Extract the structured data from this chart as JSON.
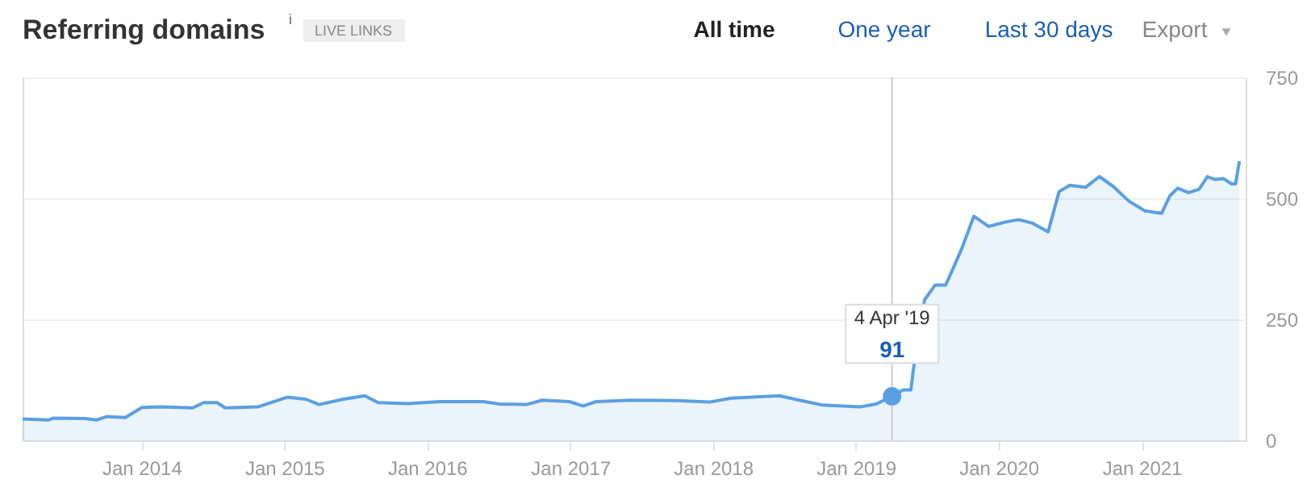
{
  "chart_data": {
    "type": "area",
    "title": "Referring domains",
    "subtitle": "LIVE LINKS",
    "x": [
      "2013-03-03",
      "2013-05-08",
      "2013-05-21",
      "2013-08-11",
      "2013-09-07",
      "2013-10-04",
      "2013-11-21",
      "2014-01-02",
      "2014-02-19",
      "2014-05-12",
      "2014-06-09",
      "2014-07-13",
      "2014-08-03",
      "2014-10-25",
      "2015-01-08",
      "2015-02-25",
      "2015-03-31",
      "2015-06-01",
      "2015-07-26",
      "2015-08-29",
      "2015-11-13",
      "2016-02-04",
      "2016-05-24",
      "2016-07-04",
      "2016-09-11",
      "2016-10-22",
      "2016-12-30",
      "2017-02-03",
      "2017-03-09",
      "2017-06-13",
      "2017-10-01",
      "2017-12-23",
      "2018-02-16",
      "2018-06-20",
      "2018-08-27",
      "2018-10-07",
      "2019-01-12",
      "2019-02-22",
      "2019-04-04",
      "2019-05-02",
      "2019-05-22",
      "2019-05-29",
      "2019-06-26",
      "2019-07-23",
      "2019-08-19",
      "2019-09-09",
      "2019-09-29",
      "2019-10-30",
      "2019-12-07",
      "2020-01-18",
      "2020-02-21",
      "2020-03-27",
      "2020-05-07",
      "2020-06-04",
      "2020-07-01",
      "2020-08-11",
      "2020-09-15",
      "2020-10-20",
      "2020-11-30",
      "2021-01-10",
      "2021-02-21",
      "2021-03-14",
      "2021-04-03",
      "2021-05-01",
      "2021-05-28",
      "2021-06-18",
      "2021-07-08",
      "2021-07-29",
      "2021-08-19",
      "2021-08-29",
      "2021-09-08"
    ],
    "series": [
      {
        "color": "#5a9fe2",
        "values": [
          44,
          42,
          46,
          45,
          42,
          49,
          47,
          68,
          69,
          67,
          78,
          78,
          67,
          69,
          89,
          85,
          74,
          85,
          92,
          78,
          76,
          80,
          80,
          75,
          74,
          83,
          80,
          71,
          80,
          83,
          82,
          79,
          87,
          92,
          80,
          73,
          69,
          75,
          91,
          104,
          104,
          150,
          290,
          321,
          321,
          359,
          396,
          463,
          442,
          451,
          456,
          449,
          431,
          514,
          527,
          523,
          545,
          525,
          494,
          474,
          469,
          505,
          521,
          512,
          519,
          545,
          539,
          541,
          530,
          530,
          577
        ]
      }
    ],
    "xlim": [
      "2013-03-03",
      "2021-09-24"
    ],
    "xticks": [
      {
        "value": "2014-01-01",
        "label": "Jan 2014"
      },
      {
        "value": "2015-01-01",
        "label": "Jan 2015"
      },
      {
        "value": "2016-01-01",
        "label": "Jan 2016"
      },
      {
        "value": "2017-01-01",
        "label": "Jan 2017"
      },
      {
        "value": "2018-01-01",
        "label": "Jan 2018"
      },
      {
        "value": "2019-01-01",
        "label": "Jan 2019"
      },
      {
        "value": "2020-01-01",
        "label": "Jan 2020"
      },
      {
        "value": "2021-01-01",
        "label": "Jan 2021"
      }
    ],
    "ylim": [
      0,
      750
    ],
    "yticks": [
      0,
      250,
      500,
      750
    ],
    "grid": "y",
    "ref_lines": [
      {
        "axis": "x",
        "value": "2019-04-04",
        "color": "#cccccc"
      }
    ],
    "annotations": [
      "i",
      "All time",
      "One year",
      "Last 30 days",
      "Export",
      "4 Apr '19",
      {
        "text": "91",
        "x": "2019-04-04",
        "y": 91
      }
    ]
  }
}
